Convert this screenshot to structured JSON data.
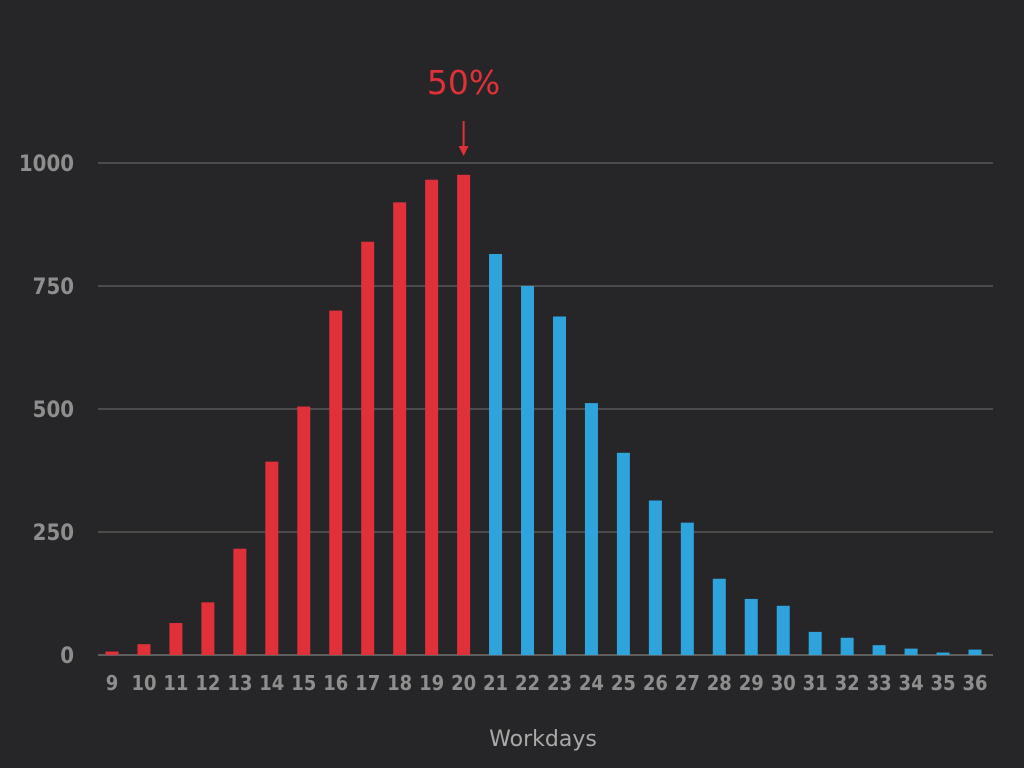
{
  "chart_data": {
    "type": "bar",
    "xlabel": "Workdays",
    "ylabel": "",
    "title": "",
    "ylim": [
      0,
      1000
    ],
    "yticks": [
      0,
      250,
      500,
      750,
      1000
    ],
    "grid": true,
    "categories": [
      "9",
      "10",
      "11",
      "12",
      "13",
      "14",
      "15",
      "16",
      "17",
      "18",
      "19",
      "20",
      "21",
      "22",
      "23",
      "24",
      "25",
      "26",
      "27",
      "28",
      "29",
      "30",
      "31",
      "32",
      "33",
      "34",
      "35",
      "36"
    ],
    "values": [
      7,
      22,
      65,
      107,
      216,
      393,
      505,
      700,
      840,
      920,
      966,
      976,
      815,
      750,
      688,
      512,
      411,
      314,
      269,
      155,
      114,
      100,
      47,
      35,
      20,
      13,
      5,
      11
    ],
    "highlight_through": "20",
    "colors": {
      "highlight": "#e0303a",
      "rest": "#2fa4dc",
      "grid": "#737373",
      "axis_text": "#8e8e8e",
      "background": "#262527"
    },
    "annotation": {
      "text": "50%",
      "category": "20"
    }
  }
}
